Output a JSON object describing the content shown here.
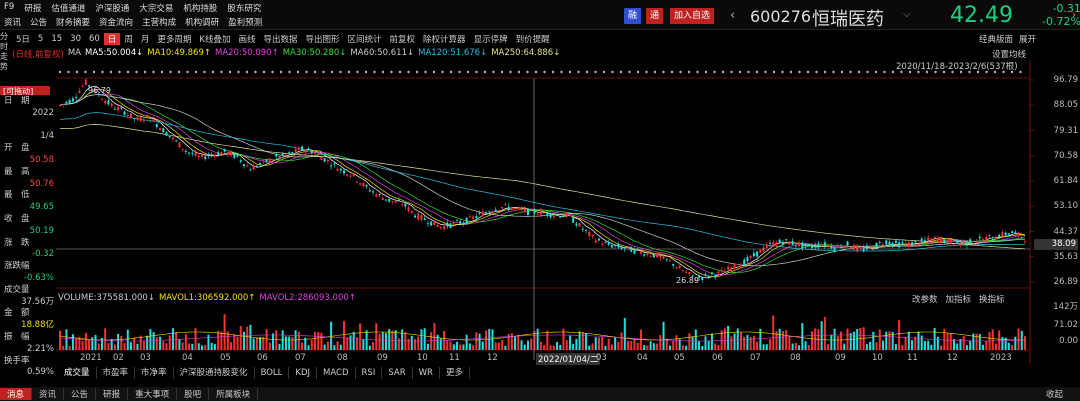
{
  "menu_row1": [
    "F9",
    "研报",
    "估值通道",
    "沪深股通",
    "大宗交易",
    "机构持股",
    "股东研究"
  ],
  "menu_row2": [
    "资讯",
    "公告",
    "财务摘要",
    "资金流向",
    "主营构成",
    "机构调研",
    "盈利预测"
  ],
  "buttons": {
    "rong": "融",
    "tong": "通",
    "add_watch": "加入自选"
  },
  "stock": {
    "code": "600276",
    "name": "恒瑞医药",
    "price": "42.49",
    "change": "-0.31",
    "change_pct": "-0.72%"
  },
  "window_icons": [
    "□",
    "⊙",
    "▭",
    "⚙"
  ],
  "controls": [
    "分时走势",
    "5日",
    "5",
    "15",
    "30",
    "60",
    "日",
    "周",
    "月",
    "更多周期",
    "K线叠加",
    "画线",
    "导出数据",
    "导出图形",
    "区间统计",
    "前复权",
    "除权计算器",
    "显示停牌",
    "到价提醒"
  ],
  "controls_right": [
    "经典版面",
    "展开"
  ],
  "selected_period": "日",
  "ma_line": [
    {
      "label": "(日线,前复权)",
      "color": "#e03030"
    },
    {
      "label": "MA",
      "color": "#ccc"
    },
    {
      "label": "MA5:50.004↓",
      "color": "#ffffff"
    },
    {
      "label": "MA10:49.869↑",
      "color": "#f0e000"
    },
    {
      "label": "MA20:50.090↑",
      "color": "#e040e0"
    },
    {
      "label": "MA30:50.280↓",
      "color": "#30e030"
    },
    {
      "label": "MA60:50.611↓",
      "color": "#cccccc"
    },
    {
      "label": "MA120:51.676↓",
      "color": "#20c0e0"
    },
    {
      "label": "MA250:64.886↓",
      "color": "#e0e090"
    }
  ],
  "set_ma": "设置均线",
  "range_text": "2020/11/18-2023/2/6(537根)",
  "drag_label": "[可拖动]",
  "info_panel": [
    {
      "label": "日　期",
      "value": "2022",
      "color": "#ccc"
    },
    {
      "label": "",
      "value": "1/4",
      "color": "#ccc"
    },
    {
      "label": "开　盘",
      "value": "50.58",
      "color": "#ff4040"
    },
    {
      "label": "最　高",
      "value": "50.76",
      "color": "#ff4040"
    },
    {
      "label": "最　低",
      "value": "49.65",
      "color": "#18d080"
    },
    {
      "label": "收　盘",
      "value": "50.19",
      "color": "#18d080"
    },
    {
      "label": "涨　跌",
      "value": "-0.32",
      "color": "#18d080"
    },
    {
      "label": "涨跌幅",
      "value": "-0.63%",
      "color": "#18d080"
    },
    {
      "label": "成交量",
      "value": "37.56万",
      "color": "#ccc"
    },
    {
      "label": "金　额",
      "value": "18.88亿",
      "color": "#f0e000"
    },
    {
      "label": "振　幅",
      "value": "2.21%",
      "color": "#ccc"
    },
    {
      "label": "换手率",
      "value": "0.59%",
      "color": "#ccc"
    }
  ],
  "price_axis": [
    "96.79",
    "88.05",
    "79.31",
    "70.58",
    "61.84",
    "53.10",
    "44.37",
    "35.63",
    "26.89"
  ],
  "crosshair_value": "38.09",
  "high_label": "96.79",
  "low_label": "26.89",
  "volume_text": [
    {
      "label": "VOLUME:375581.000↓",
      "color": "#ccc"
    },
    {
      "label": "MAVOL1:306592.000↑",
      "color": "#f0e000"
    },
    {
      "label": "MAVOL2:286093.000↑",
      "color": "#e040e0"
    }
  ],
  "volume_buttons": [
    "改参数",
    "加指标",
    "换指标"
  ],
  "volume_axis": [
    "142万",
    "71.02",
    "0.00"
  ],
  "x_axis": [
    "2021",
    "02",
    "03",
    "04",
    "05",
    "06",
    "07",
    "08",
    "09",
    "10",
    "11",
    "12",
    "2022/01/04/二",
    "03",
    "04",
    "05",
    "06",
    "07",
    "08",
    "09",
    "10",
    "11",
    "12",
    "2023"
  ],
  "indicator_tabs": [
    "成交量",
    "市盈率",
    "市净率",
    "沪深股通持股变化",
    "BOLL",
    "KDJ",
    "MACD",
    "RSI",
    "SAR",
    "WR",
    "更多"
  ],
  "bottom_tabs": [
    "消息",
    "资讯",
    "公告",
    "研报",
    "重大事项",
    "股吧",
    "所属板块"
  ],
  "bottom_right": "收起",
  "chart_data": {
    "type": "candlestick",
    "title": "",
    "ylim": [
      26.89,
      96.79
    ],
    "close_path": [
      88,
      90,
      96,
      92,
      88,
      86,
      83,
      84,
      80,
      76,
      72,
      70,
      71,
      72,
      70,
      66,
      68,
      70,
      71,
      73,
      72,
      69,
      66,
      64,
      60,
      57,
      55,
      54,
      50,
      48,
      46,
      47,
      48,
      50,
      52,
      53,
      52,
      51,
      51,
      50,
      50,
      46,
      42,
      40,
      39,
      38,
      37,
      36,
      34,
      31,
      28,
      29,
      30,
      32,
      34,
      37,
      40,
      41,
      40,
      39,
      40,
      39,
      40,
      38,
      39,
      41,
      40,
      40,
      41,
      42,
      41,
      40,
      41,
      42,
      43,
      44,
      42
    ]
  }
}
